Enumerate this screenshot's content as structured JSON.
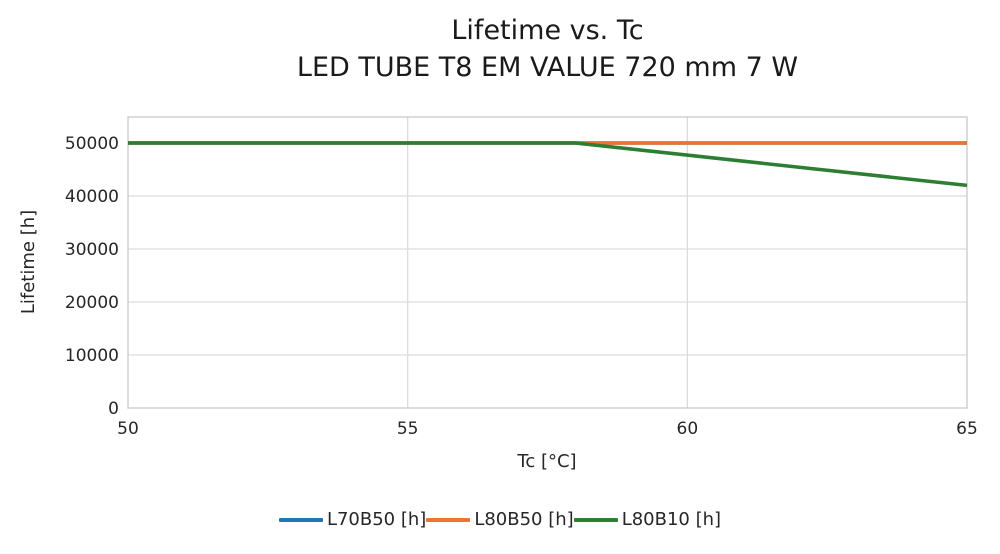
{
  "chart_data": {
    "type": "line",
    "title": "Lifetime vs. Tc",
    "subtitle": "LED TUBE T8 EM VALUE 720 mm 7 W",
    "xlabel": "Tc [°C]",
    "ylabel": "Lifetime [h]",
    "xlim": [
      50,
      65
    ],
    "ylim": [
      0,
      55000
    ],
    "xticks": [
      50,
      55,
      60,
      65
    ],
    "yticks": [
      0,
      10000,
      20000,
      30000,
      40000,
      50000
    ],
    "grid": true,
    "legend_position": "bottom",
    "colors": {
      "grid": "#dcdcdc",
      "border": "#c9c9c9",
      "text": "#262626",
      "title": "#1a1a1a"
    },
    "series": [
      {
        "name": "L70B50 [h]",
        "color": "#1f77b4",
        "points": [
          [
            50,
            50000
          ],
          [
            65,
            50000
          ]
        ]
      },
      {
        "name": "L80B50 [h]",
        "color": "#ea7430",
        "points": [
          [
            50,
            50000
          ],
          [
            65,
            50000
          ]
        ]
      },
      {
        "name": "L80B10 [h]",
        "color": "#2d7d32",
        "points": [
          [
            50,
            50000
          ],
          [
            58,
            50000
          ],
          [
            65,
            42000
          ]
        ]
      }
    ]
  }
}
